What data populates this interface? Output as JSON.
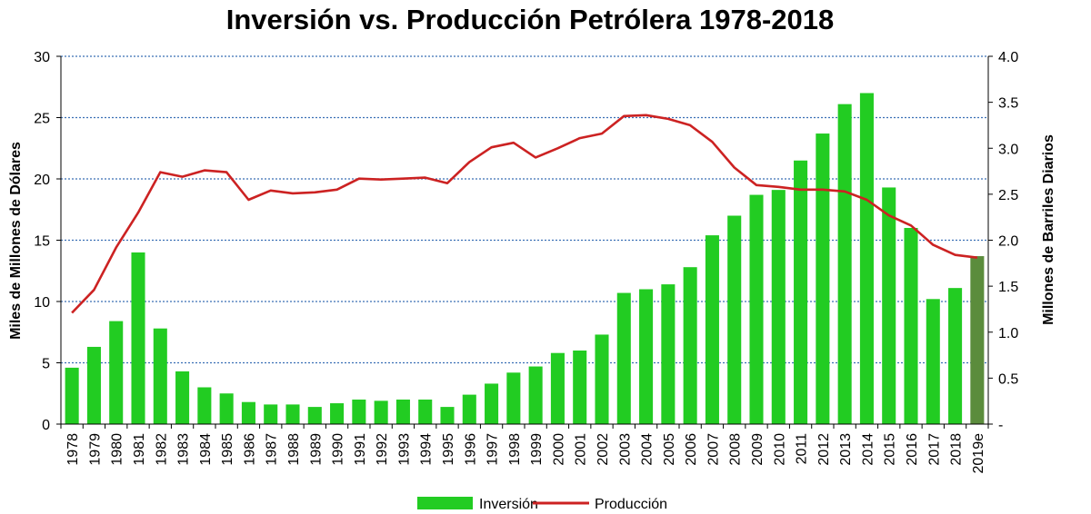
{
  "chart_data": {
    "type": "bar",
    "title": "Inversión vs. Producción Petrólera 1978-2018",
    "ylabel": "Miles de Millones de Dólares",
    "y2label": "Millones de Barriles Diarios",
    "ylim": [
      0,
      30
    ],
    "y2lim": [
      0,
      4.0
    ],
    "yticks": [
      "0",
      "5",
      "10",
      "15",
      "20",
      "25",
      "30"
    ],
    "y2ticks": [
      "-",
      "0.5",
      "1.0",
      "1.5",
      "2.0",
      "2.5",
      "3.0",
      "3.5",
      "4.0"
    ],
    "grid": true,
    "legend_position": "bottom",
    "categories": [
      "1978",
      "1979",
      "1980",
      "1981",
      "1982",
      "1983",
      "1984",
      "1985",
      "1986",
      "1987",
      "1988",
      "1989",
      "1990",
      "1991",
      "1992",
      "1993",
      "1994",
      "1995",
      "1996",
      "1997",
      "1998",
      "1999",
      "2000",
      "2001",
      "2002",
      "2003",
      "2004",
      "2005",
      "2006",
      "2007",
      "2008",
      "2009",
      "2010",
      "2011",
      "2012",
      "2013",
      "2014",
      "2015",
      "2016",
      "2017",
      "2018",
      "2019e"
    ],
    "series": [
      {
        "name": "Inversión",
        "type": "bar",
        "axis": "left",
        "color": "#22cc22",
        "highlight_color": "#5b8c3c",
        "highlight_category": "2019e",
        "values": [
          4.6,
          6.3,
          8.4,
          14.0,
          7.8,
          4.3,
          3.0,
          2.5,
          1.8,
          1.6,
          1.6,
          1.4,
          1.7,
          2.0,
          1.9,
          2.0,
          2.0,
          1.4,
          2.4,
          3.3,
          4.2,
          4.7,
          5.8,
          6.0,
          7.3,
          10.7,
          11.0,
          11.4,
          12.8,
          15.4,
          17.0,
          18.7,
          19.1,
          21.5,
          23.7,
          26.1,
          27.0,
          19.3,
          16.0,
          10.2,
          11.1,
          13.7
        ]
      },
      {
        "name": "Producción",
        "type": "line",
        "axis": "right",
        "color": "#cc2222",
        "values": [
          1.21,
          1.46,
          1.92,
          2.3,
          2.74,
          2.69,
          2.76,
          2.74,
          2.44,
          2.54,
          2.51,
          2.52,
          2.55,
          2.67,
          2.66,
          2.67,
          2.68,
          2.62,
          2.85,
          3.01,
          3.06,
          2.9,
          3.0,
          3.11,
          3.16,
          3.35,
          3.36,
          3.32,
          3.25,
          3.07,
          2.79,
          2.6,
          2.58,
          2.55,
          2.55,
          2.53,
          2.44,
          2.27,
          2.16,
          1.95,
          1.84,
          1.81
        ]
      }
    ]
  }
}
